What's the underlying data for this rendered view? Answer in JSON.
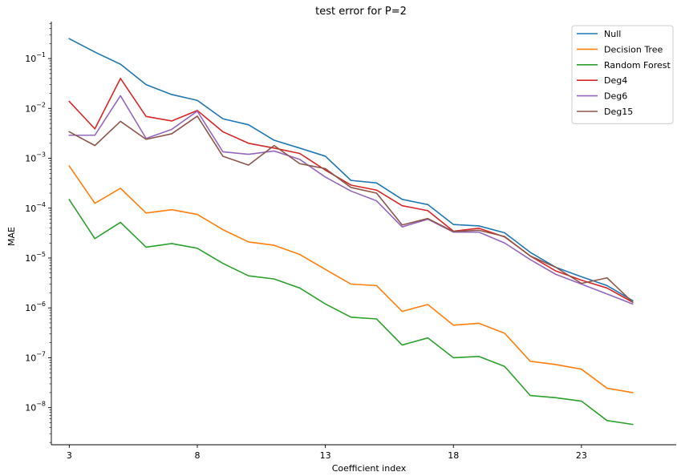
{
  "chart_data": {
    "type": "line",
    "title": "test error for P=2",
    "xlabel": "Coefficient index",
    "ylabel": "MAE",
    "yscale": "log",
    "xlim": [
      2.3,
      26.7
    ],
    "ylim": [
      1.8e-09,
      0.55
    ],
    "xticks": [
      3,
      8,
      13,
      18,
      23
    ],
    "yticks": [
      {
        "value": 1e-08,
        "base": "10",
        "exp": "−8"
      },
      {
        "value": 1e-07,
        "base": "10",
        "exp": "−7"
      },
      {
        "value": 1e-06,
        "base": "10",
        "exp": "−6"
      },
      {
        "value": 1e-05,
        "base": "10",
        "exp": "−5"
      },
      {
        "value": 0.0001,
        "base": "10",
        "exp": "−4"
      },
      {
        "value": 0.001,
        "base": "10",
        "exp": "−3"
      },
      {
        "value": 0.01,
        "base": "10",
        "exp": "−2"
      },
      {
        "value": 0.1,
        "base": "10",
        "exp": "−1"
      }
    ],
    "grid": false,
    "legend_position": "top-right",
    "x": [
      3,
      4,
      5,
      6,
      7,
      8,
      9,
      10,
      11,
      12,
      13,
      14,
      15,
      16,
      17,
      18,
      19,
      20,
      21,
      22,
      23,
      24,
      25
    ],
    "series": [
      {
        "name": "Null",
        "color": "#1f77b4",
        "values": [
          0.25,
          0.135,
          0.077,
          0.03,
          0.019,
          0.0145,
          0.0062,
          0.0047,
          0.0023,
          0.0016,
          0.0011,
          0.00036,
          0.00032,
          0.00015,
          0.000118,
          4.7e-05,
          4.4e-05,
          3.2e-05,
          1.3e-05,
          6.5e-06,
          4.2e-06,
          2.8e-06,
          1.4e-06
        ]
      },
      {
        "name": "Decision Tree",
        "color": "#ff7f0e",
        "values": [
          0.0007,
          0.000125,
          0.00025,
          8e-05,
          9.3e-05,
          7.5e-05,
          3.7e-05,
          2.1e-05,
          1.8e-05,
          1.18e-05,
          5.9e-06,
          3e-06,
          2.8e-06,
          8.5e-07,
          1.17e-06,
          4.5e-07,
          4.9e-07,
          3.1e-07,
          8.5e-08,
          7.3e-08,
          5.9e-08,
          2.45e-08,
          2e-08
        ]
      },
      {
        "name": "Random Forest",
        "color": "#2ca02c",
        "values": [
          0.000148,
          2.45e-05,
          5.2e-05,
          1.65e-05,
          1.95e-05,
          1.57e-05,
          7.8e-06,
          4.4e-06,
          3.8e-06,
          2.5e-06,
          1.2e-06,
          6.5e-07,
          6e-07,
          1.8e-07,
          2.5e-07,
          1e-07,
          1.06e-07,
          6.7e-08,
          1.75e-08,
          1.58e-08,
          1.35e-08,
          5.5e-09,
          4.6e-09
        ]
      },
      {
        "name": "Deg4",
        "color": "#d62728",
        "values": [
          0.0138,
          0.0039,
          0.04,
          0.0069,
          0.0056,
          0.0091,
          0.0034,
          0.002,
          0.0016,
          0.00125,
          0.00058,
          0.00029,
          0.00023,
          0.000112,
          8.9e-05,
          3.45e-05,
          3.95e-05,
          2.65e-05,
          1.1e-05,
          5.5e-06,
          3.6e-06,
          2.5e-06,
          1.3e-06
        ]
      },
      {
        "name": "Deg6",
        "color": "#9467bd",
        "values": [
          0.0029,
          0.0029,
          0.018,
          0.0025,
          0.0038,
          0.0088,
          0.00135,
          0.0012,
          0.0014,
          0.00095,
          0.00042,
          0.00022,
          0.00014,
          4.2e-05,
          6e-05,
          3.3e-05,
          3.3e-05,
          2e-05,
          9.3e-06,
          4.7e-06,
          3e-06,
          1.9e-06,
          1.2e-06
        ]
      },
      {
        "name": "Deg15",
        "color": "#8c564b",
        "values": [
          0.0034,
          0.0018,
          0.0055,
          0.0024,
          0.0031,
          0.007,
          0.0011,
          0.00073,
          0.0018,
          0.00078,
          0.00062,
          0.00026,
          0.0002,
          4.6e-05,
          6.2e-05,
          3.4e-05,
          3.6e-05,
          2.7e-05,
          1.1e-05,
          6.5e-06,
          3.1e-06,
          4e-06,
          1.3e-06
        ]
      }
    ]
  }
}
